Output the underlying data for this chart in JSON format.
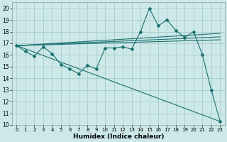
{
  "xlabel": "Humidex (Indice chaleur)",
  "ylabel": "",
  "bg_color": "#cde8e8",
  "grid_color": "#aacccc",
  "line_color": "#1a7070",
  "xlim": [
    -0.5,
    23.5
  ],
  "ylim": [
    10,
    20.5
  ],
  "yticks": [
    10,
    11,
    12,
    13,
    14,
    15,
    16,
    17,
    18,
    19,
    20
  ],
  "xtick_labels": [
    "0",
    "1",
    "2",
    "3",
    "4",
    "5",
    "6",
    "7",
    "8",
    "9",
    "10",
    "11",
    "12",
    "13",
    "14",
    "15",
    "16",
    "17",
    "18",
    "19",
    "20",
    "21",
    "22",
    "23"
  ],
  "line1_x": [
    0,
    1,
    2,
    3,
    4,
    5,
    6,
    7,
    8,
    9,
    10,
    11,
    12,
    13,
    14,
    15,
    16,
    17,
    18,
    19,
    20,
    21,
    22,
    23
  ],
  "line1_y": [
    16.8,
    16.3,
    15.9,
    16.7,
    16.1,
    15.2,
    14.8,
    14.4,
    15.1,
    14.8,
    16.6,
    16.6,
    16.7,
    16.5,
    18.0,
    20.0,
    18.5,
    19.0,
    18.1,
    17.5,
    18.0,
    16.0,
    13.0,
    10.3
  ],
  "line2_x": [
    0,
    23
  ],
  "line2_y": [
    16.8,
    10.3
  ],
  "line3_x": [
    0,
    23
  ],
  "line3_y": [
    16.8,
    17.85
  ],
  "line4_x": [
    0,
    23
  ],
  "line4_y": [
    16.8,
    17.55
  ],
  "line5_x": [
    0,
    23
  ],
  "line5_y": [
    16.8,
    17.3
  ]
}
